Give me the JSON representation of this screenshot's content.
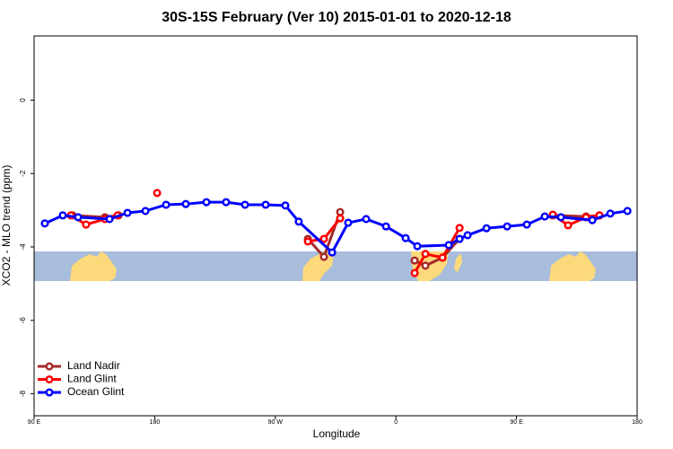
{
  "chart_data": {
    "type": "line",
    "title": "30S-15S February (Ver 10)   2015-01-01 to 2020-12-18",
    "x_label": "Longitude",
    "y_label": "XCO2 - MLO trend (ppm)",
    "xlim": [
      90,
      540
    ],
    "ylim": [
      -8.6,
      1.75
    ],
    "xticks": [
      {
        "value": 90,
        "label": "90 E"
      },
      {
        "value": 180,
        "label": "180"
      },
      {
        "value": 270,
        "label": "90 W"
      },
      {
        "value": 360,
        "label": "0"
      },
      {
        "value": 450,
        "label": "90 E"
      },
      {
        "value": 540,
        "label": "180"
      }
    ],
    "yticks": [
      -8,
      -6,
      -4,
      -2,
      0
    ],
    "grid": false,
    "legend": "bottom-left",
    "series": [
      {
        "name": "Land Nadir",
        "color": "#a52a2a",
        "x": [
          118.8,
          142.9,
          153.0,
          null,
          294.3,
          306.3,
          318.4,
          null,
          374.0,
          382.0,
          394.8,
          407.5,
          null,
          477.1,
          501.9,
          511.9
        ],
        "values": [
          -3.14,
          -3.19,
          -3.14,
          null,
          -3.78,
          -4.27,
          -3.05,
          null,
          -4.37,
          -4.51,
          -4.29,
          -3.78,
          null,
          -3.14,
          -3.17,
          -3.14
        ]
      },
      {
        "name": "Land Glint",
        "color": "#ff0000",
        "x": [
          117.5,
          128.8,
          142.9,
          152.3,
          null,
          181.8,
          null,
          294.3,
          306.3,
          318.4,
          null,
          374.0,
          382.0,
          394.8,
          407.5,
          null,
          477.1,
          488.5,
          501.9,
          511.9
        ],
        "values": [
          -3.14,
          -3.39,
          -3.24,
          -3.14,
          null,
          -2.53,
          null,
          -3.85,
          -3.78,
          -3.22,
          null,
          -4.71,
          -4.19,
          -4.29,
          -3.48,
          null,
          -3.12,
          -3.41,
          -3.19,
          -3.14
        ]
      },
      {
        "name": "Ocean Glint",
        "color": "#0000ff",
        "x": [
          98.0,
          111.4,
          122.8,
          146.3,
          159.7,
          173.1,
          188.5,
          203.2,
          218.6,
          233.3,
          247.4,
          262.8,
          277.5,
          287.5,
          312.4,
          324.4,
          337.8,
          352.6,
          367.3,
          376.0,
          399.4,
          407.5,
          413.5,
          427.6,
          443.0,
          457.7,
          471.1,
          483.2,
          506.6,
          520.0,
          532.8
        ],
        "values": [
          -3.36,
          -3.14,
          -3.19,
          -3.24,
          -3.07,
          -3.02,
          -2.85,
          -2.83,
          -2.78,
          -2.78,
          -2.85,
          -2.85,
          -2.87,
          -3.31,
          -4.15,
          -3.34,
          -3.24,
          -3.44,
          -3.76,
          -3.98,
          -3.95,
          -3.78,
          -3.68,
          -3.49,
          -3.44,
          -3.39,
          -3.17,
          -3.19,
          -3.27,
          -3.09,
          -3.02
        ]
      }
    ]
  }
}
